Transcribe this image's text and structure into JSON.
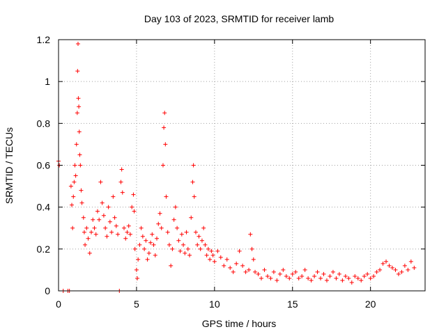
{
  "chart_data": {
    "type": "scatter",
    "title": "Day 103 of 2023, SRMTID for receiver lamb",
    "xlabel": "GPS time / hours",
    "ylabel": "SRMTID / TECUs",
    "xlim": [
      0,
      23.5
    ],
    "ylim": [
      0,
      1.2
    ],
    "x_ticks": [
      0,
      5,
      10,
      15,
      20
    ],
    "x_tick_labels": [
      "0",
      "5",
      "10",
      "15",
      "20"
    ],
    "y_ticks": [
      0,
      0.2,
      0.4,
      0.6,
      0.8,
      1.0,
      1.2
    ],
    "y_tick_labels": [
      "0",
      "0.2",
      "0.4",
      "0.6",
      "0.8",
      "1",
      "1.2"
    ],
    "grid": true,
    "marker": "+",
    "color": "#ff0000",
    "series": [
      {
        "name": "SRMTID",
        "points": [
          [
            0.0,
            0.62
          ],
          [
            0.05,
            0.6
          ],
          [
            0.3,
            0.0
          ],
          [
            0.6,
            0.0
          ],
          [
            0.7,
            0.0
          ],
          [
            0.8,
            0.5
          ],
          [
            0.85,
            0.41
          ],
          [
            0.9,
            0.3
          ],
          [
            0.95,
            0.45
          ],
          [
            1.0,
            0.52
          ],
          [
            1.05,
            0.6
          ],
          [
            1.1,
            0.55
          ],
          [
            1.15,
            0.7
          ],
          [
            1.2,
            0.85
          ],
          [
            1.22,
            1.05
          ],
          [
            1.25,
            1.18
          ],
          [
            1.27,
            0.92
          ],
          [
            1.3,
            0.88
          ],
          [
            1.33,
            0.76
          ],
          [
            1.36,
            0.65
          ],
          [
            1.4,
            0.6
          ],
          [
            1.45,
            0.48
          ],
          [
            1.5,
            0.42
          ],
          [
            1.6,
            0.35
          ],
          [
            1.65,
            0.28
          ],
          [
            1.7,
            0.22
          ],
          [
            1.8,
            0.3
          ],
          [
            1.9,
            0.25
          ],
          [
            2.0,
            0.18
          ],
          [
            2.1,
            0.28
          ],
          [
            2.2,
            0.34
          ],
          [
            2.3,
            0.3
          ],
          [
            2.4,
            0.27
          ],
          [
            2.5,
            0.38
          ],
          [
            2.6,
            0.34
          ],
          [
            2.7,
            0.52
          ],
          [
            2.8,
            0.42
          ],
          [
            2.9,
            0.36
          ],
          [
            3.0,
            0.3
          ],
          [
            3.1,
            0.26
          ],
          [
            3.2,
            0.4
          ],
          [
            3.3,
            0.33
          ],
          [
            3.4,
            0.28
          ],
          [
            3.5,
            0.45
          ],
          [
            3.6,
            0.35
          ],
          [
            3.7,
            0.31
          ],
          [
            3.8,
            0.27
          ],
          [
            3.9,
            0.0
          ],
          [
            4.0,
            0.52
          ],
          [
            4.05,
            0.58
          ],
          [
            4.1,
            0.47
          ],
          [
            4.2,
            0.3
          ],
          [
            4.3,
            0.25
          ],
          [
            4.4,
            0.28
          ],
          [
            4.5,
            0.31
          ],
          [
            4.6,
            0.27
          ],
          [
            4.7,
            0.4
          ],
          [
            4.8,
            0.46
          ],
          [
            4.85,
            0.38
          ],
          [
            4.9,
            0.2
          ],
          [
            5.0,
            0.1
          ],
          [
            5.05,
            0.06
          ],
          [
            5.1,
            0.15
          ],
          [
            5.2,
            0.22
          ],
          [
            5.3,
            0.3
          ],
          [
            5.4,
            0.26
          ],
          [
            5.5,
            0.2
          ],
          [
            5.6,
            0.24
          ],
          [
            5.7,
            0.15
          ],
          [
            5.8,
            0.18
          ],
          [
            5.9,
            0.23
          ],
          [
            6.0,
            0.27
          ],
          [
            6.1,
            0.22
          ],
          [
            6.2,
            0.17
          ],
          [
            6.3,
            0.25
          ],
          [
            6.4,
            0.32
          ],
          [
            6.5,
            0.37
          ],
          [
            6.6,
            0.3
          ],
          [
            6.7,
            0.6
          ],
          [
            6.75,
            0.78
          ],
          [
            6.8,
            0.85
          ],
          [
            6.85,
            0.7
          ],
          [
            6.9,
            0.45
          ],
          [
            7.0,
            0.28
          ],
          [
            7.1,
            0.22
          ],
          [
            7.2,
            0.12
          ],
          [
            7.3,
            0.2
          ],
          [
            7.4,
            0.34
          ],
          [
            7.5,
            0.4
          ],
          [
            7.6,
            0.3
          ],
          [
            7.7,
            0.24
          ],
          [
            7.8,
            0.19
          ],
          [
            7.9,
            0.27
          ],
          [
            8.0,
            0.22
          ],
          [
            8.1,
            0.18
          ],
          [
            8.2,
            0.28
          ],
          [
            8.3,
            0.2
          ],
          [
            8.4,
            0.17
          ],
          [
            8.5,
            0.35
          ],
          [
            8.6,
            0.52
          ],
          [
            8.65,
            0.6
          ],
          [
            8.7,
            0.45
          ],
          [
            8.8,
            0.28
          ],
          [
            8.9,
            0.22
          ],
          [
            9.0,
            0.26
          ],
          [
            9.1,
            0.2
          ],
          [
            9.2,
            0.24
          ],
          [
            9.3,
            0.3
          ],
          [
            9.4,
            0.22
          ],
          [
            9.5,
            0.17
          ],
          [
            9.6,
            0.2
          ],
          [
            9.7,
            0.15
          ],
          [
            9.8,
            0.19
          ],
          [
            9.9,
            0.17
          ],
          [
            10.0,
            0.14
          ],
          [
            10.2,
            0.19
          ],
          [
            10.4,
            0.16
          ],
          [
            10.6,
            0.12
          ],
          [
            10.8,
            0.15
          ],
          [
            11.0,
            0.11
          ],
          [
            11.2,
            0.09
          ],
          [
            11.4,
            0.13
          ],
          [
            11.6,
            0.19
          ],
          [
            11.8,
            0.12
          ],
          [
            12.0,
            0.09
          ],
          [
            12.2,
            0.1
          ],
          [
            12.3,
            0.27
          ],
          [
            12.4,
            0.2
          ],
          [
            12.5,
            0.15
          ],
          [
            12.6,
            0.09
          ],
          [
            12.8,
            0.08
          ],
          [
            13.0,
            0.06
          ],
          [
            13.2,
            0.1
          ],
          [
            13.4,
            0.07
          ],
          [
            13.6,
            0.06
          ],
          [
            13.8,
            0.09
          ],
          [
            14.0,
            0.05
          ],
          [
            14.2,
            0.08
          ],
          [
            14.4,
            0.1
          ],
          [
            14.6,
            0.07
          ],
          [
            14.8,
            0.06
          ],
          [
            15.0,
            0.08
          ],
          [
            15.2,
            0.09
          ],
          [
            15.4,
            0.06
          ],
          [
            15.6,
            0.07
          ],
          [
            15.8,
            0.1
          ],
          [
            16.0,
            0.06
          ],
          [
            16.2,
            0.05
          ],
          [
            16.4,
            0.07
          ],
          [
            16.6,
            0.09
          ],
          [
            16.8,
            0.06
          ],
          [
            17.0,
            0.08
          ],
          [
            17.2,
            0.05
          ],
          [
            17.4,
            0.07
          ],
          [
            17.6,
            0.09
          ],
          [
            17.8,
            0.06
          ],
          [
            18.0,
            0.08
          ],
          [
            18.2,
            0.05
          ],
          [
            18.4,
            0.07
          ],
          [
            18.6,
            0.06
          ],
          [
            18.8,
            0.04
          ],
          [
            19.0,
            0.07
          ],
          [
            19.2,
            0.06
          ],
          [
            19.4,
            0.05
          ],
          [
            19.6,
            0.07
          ],
          [
            19.8,
            0.08
          ],
          [
            20.0,
            0.06
          ],
          [
            20.2,
            0.07
          ],
          [
            20.4,
            0.09
          ],
          [
            20.6,
            0.1
          ],
          [
            20.8,
            0.13
          ],
          [
            21.0,
            0.14
          ],
          [
            21.2,
            0.12
          ],
          [
            21.4,
            0.11
          ],
          [
            21.6,
            0.1
          ],
          [
            21.8,
            0.08
          ],
          [
            22.0,
            0.09
          ],
          [
            22.2,
            0.12
          ],
          [
            22.4,
            0.1
          ],
          [
            22.6,
            0.14
          ],
          [
            22.8,
            0.11
          ]
        ]
      }
    ]
  }
}
